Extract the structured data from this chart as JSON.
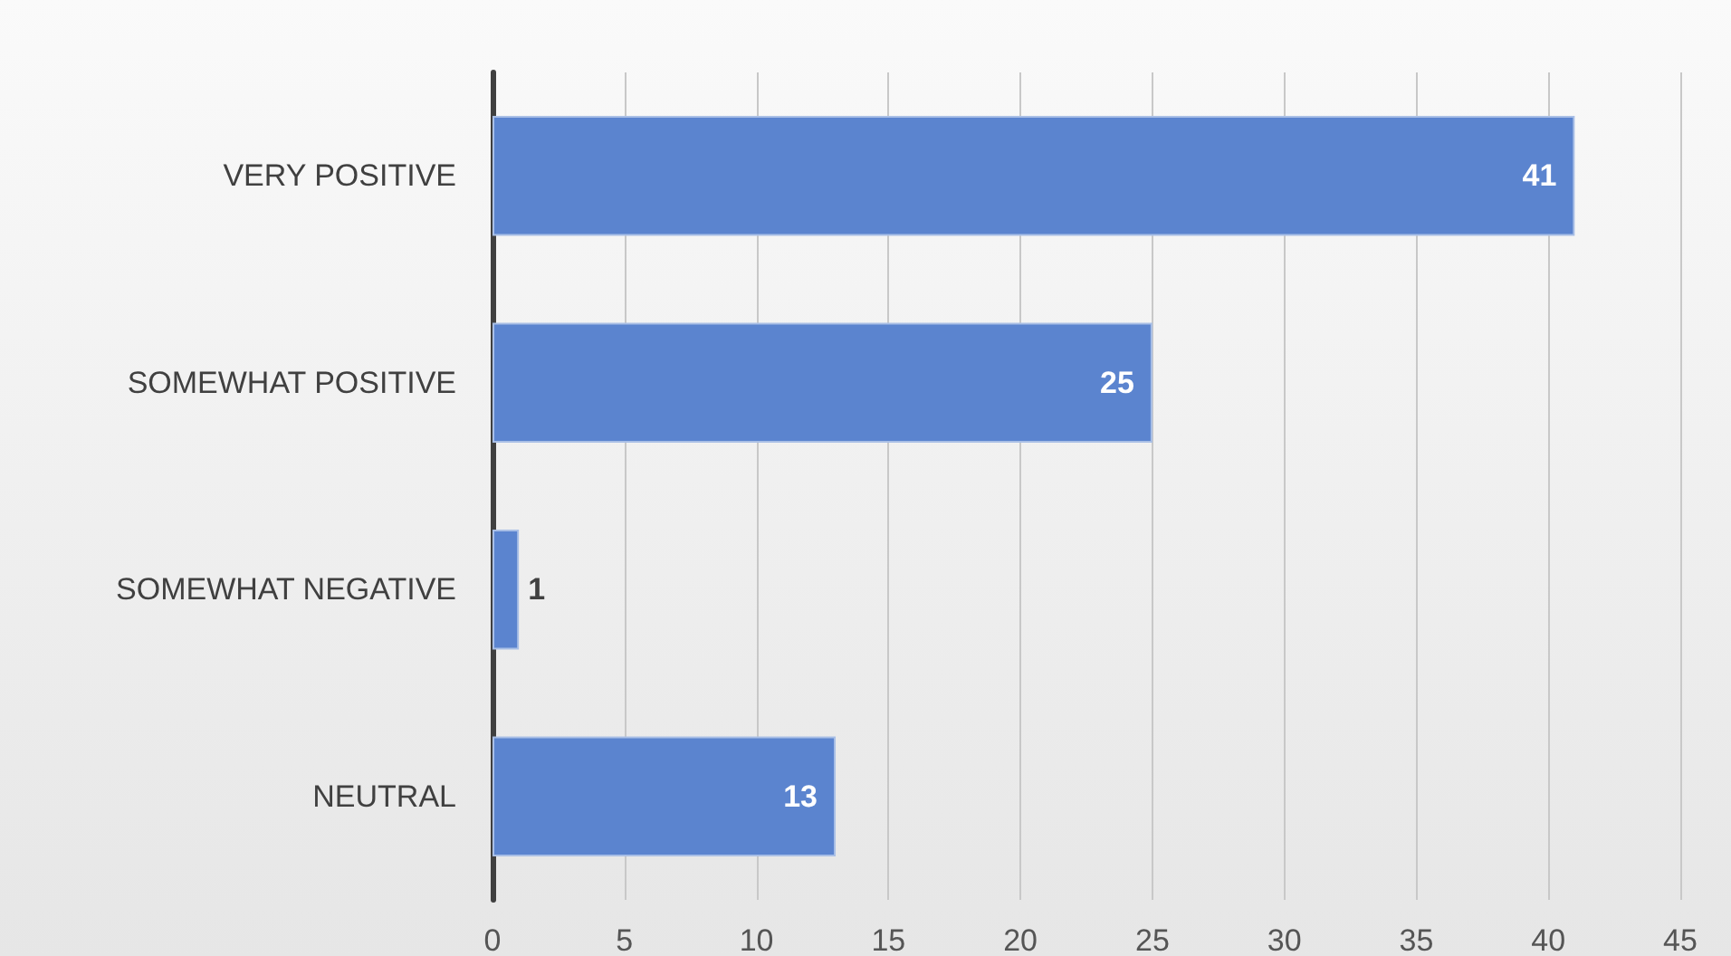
{
  "chart_data": {
    "type": "bar",
    "orientation": "horizontal",
    "categories": [
      "VERY POSITIVE",
      "SOMEWHAT POSITIVE",
      "SOMEWHAT NEGATIVE",
      "NEUTRAL"
    ],
    "values": [
      41,
      25,
      1,
      13
    ],
    "color": "#5b84cf",
    "xlim": [
      0,
      45
    ],
    "xticks": [
      0,
      5,
      10,
      15,
      20,
      25,
      30,
      35,
      40,
      45
    ],
    "grid": "x",
    "data_labels": true
  }
}
